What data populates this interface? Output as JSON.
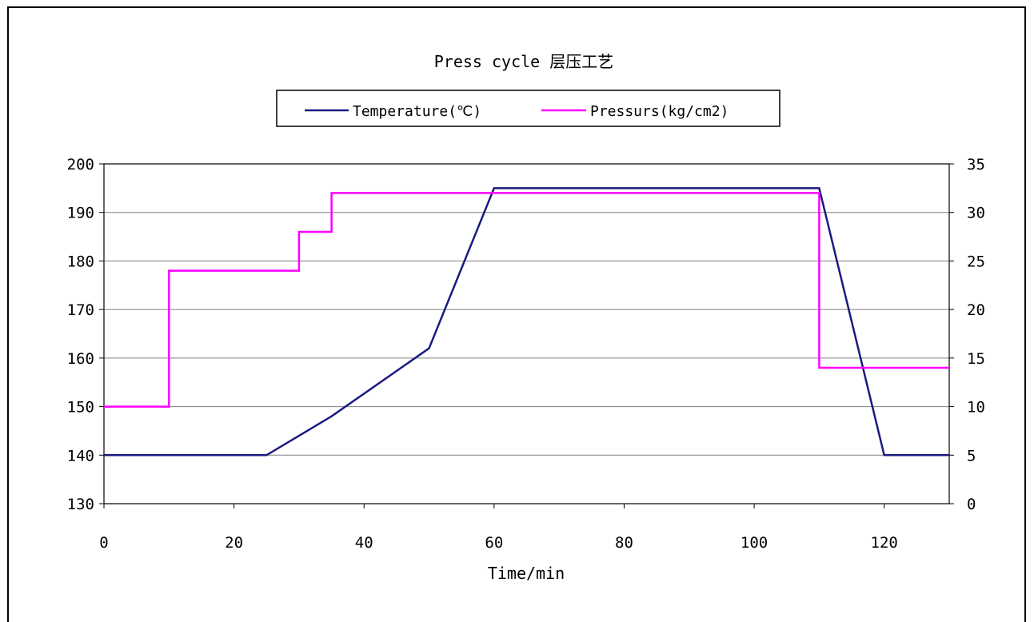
{
  "chart_data": {
    "type": "line",
    "title": "Press cycle 层压工艺",
    "xlabel": "Time/min",
    "ylabel_left": "",
    "ylabel_right": "",
    "xlim": [
      0,
      130
    ],
    "ylim_left": [
      130,
      200
    ],
    "ylim_right": [
      0,
      35
    ],
    "x_ticks": [
      0,
      20,
      40,
      60,
      80,
      100,
      120
    ],
    "y_left_ticks": [
      130,
      140,
      150,
      160,
      170,
      180,
      190,
      200
    ],
    "y_right_ticks": [
      0,
      5,
      10,
      15,
      20,
      25,
      30,
      35
    ],
    "grid": "horizontal",
    "legend_position": "top-center",
    "series": [
      {
        "name": "Temperature(℃)",
        "axis": "left",
        "color": "#1a1a80",
        "step": false,
        "x": [
          0,
          25,
          35,
          50,
          60,
          110,
          120,
          130
        ],
        "y": [
          140,
          140,
          148,
          162,
          195,
          195,
          140,
          140
        ]
      },
      {
        "name": "Pressurs(kg/cm2)",
        "axis": "right",
        "color": "#ff00ff",
        "step": true,
        "x": [
          0,
          10,
          10,
          30,
          30,
          35,
          35,
          110,
          110,
          130
        ],
        "y": [
          10,
          10,
          24,
          24,
          28,
          28,
          32,
          32,
          14,
          14
        ]
      }
    ]
  }
}
